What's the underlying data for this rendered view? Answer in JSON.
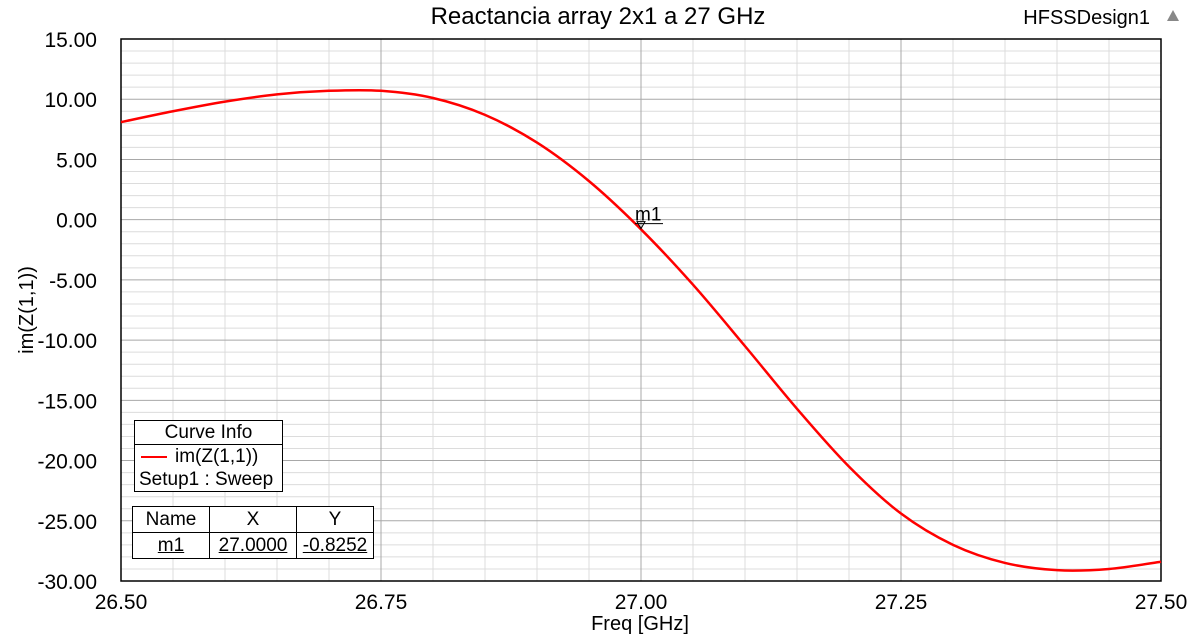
{
  "window": {
    "design_name": "HFSSDesign1"
  },
  "chart_data": {
    "type": "line",
    "title": "Reactancia array 2x1 a 27 GHz",
    "xlabel": "Freq [GHz]",
    "ylabel": "im(Z(1,1))",
    "xlim": [
      26.5,
      27.5
    ],
    "ylim": [
      -30,
      15
    ],
    "x_ticks": [
      "26.50",
      "26.75",
      "27.00",
      "27.25",
      "27.50"
    ],
    "y_ticks": [
      "15.00",
      "10.00",
      "5.00",
      "0.00",
      "-5.00",
      "-10.00",
      "-15.00",
      "-20.00",
      "-25.00",
      "-30.00"
    ],
    "grid": true,
    "series": [
      {
        "name": "im(Z(1,1))",
        "color": "#ff0000",
        "x": [
          26.5,
          26.55,
          26.6,
          26.65,
          26.7,
          26.75,
          26.8,
          26.85,
          26.9,
          26.95,
          27.0,
          27.05,
          27.1,
          27.15,
          27.2,
          27.25,
          27.3,
          27.35,
          27.4,
          27.45,
          27.5
        ],
        "y": [
          8.1,
          9.0,
          9.8,
          10.4,
          10.7,
          10.7,
          10.1,
          8.7,
          6.4,
          3.2,
          -0.8,
          -5.4,
          -10.5,
          -15.7,
          -20.5,
          -24.4,
          -27.0,
          -28.5,
          -29.1,
          -29.0,
          -28.4
        ]
      }
    ],
    "marker": {
      "name": "m1",
      "x": 27.0,
      "y": -0.8252
    }
  },
  "curve_info": {
    "title": "Curve Info",
    "entry": "im(Z(1,1))",
    "sub": "Setup1 : Sweep"
  },
  "marker_table": {
    "headers": [
      "Name",
      "X",
      "Y"
    ],
    "rows": [
      [
        "m1",
        "27.0000",
        "-0.8252"
      ]
    ]
  }
}
